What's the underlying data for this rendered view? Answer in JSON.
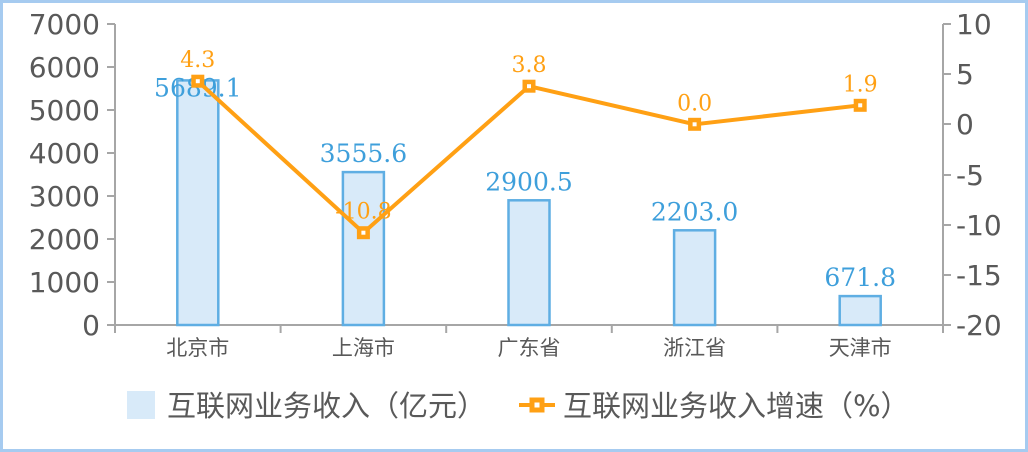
{
  "chart_data": {
    "type": "bar",
    "subtype": "bar-line-combo",
    "title": "",
    "categories": [
      "北京市",
      "上海市",
      "广东省",
      "浙江省",
      "天津市"
    ],
    "series": [
      {
        "name": "互联网业务收入（亿元）",
        "type": "bar",
        "axis": "left",
        "values": [
          5689.1,
          3555.6,
          2900.5,
          2203.0,
          671.8
        ],
        "labels": [
          "5689.1",
          "3555.6",
          "2900.5",
          "2203.0",
          "671.8"
        ]
      },
      {
        "name": "互联网业务收入增速（%）",
        "type": "line",
        "axis": "right",
        "values": [
          4.3,
          -10.8,
          3.8,
          0.0,
          1.9
        ],
        "labels": [
          "4.3",
          "-10.8",
          "3.8",
          "0.0",
          "1.9"
        ]
      }
    ],
    "left_axis": {
      "min": 0,
      "max": 7000,
      "step": 1000,
      "ticks": [
        "7000",
        "6000",
        "5000",
        "4000",
        "3000",
        "2000",
        "1000",
        "0"
      ]
    },
    "right_axis": {
      "min": -20,
      "max": 10,
      "step": 5,
      "ticks": [
        "10",
        "5",
        "0",
        "-5",
        "-10",
        "-15",
        "-20"
      ]
    },
    "grid": false,
    "legend_position": "bottom"
  },
  "colors": {
    "bar_fill": "#D8EAF9",
    "bar_border": "#5FAEE3",
    "bar_label": "#3E9FDB",
    "line": "#FFA014",
    "marker_dot": "#FFFFFF",
    "axis_text": "#595959",
    "axis_line": "#A6A6A6",
    "frame_border": "#A6CBF0"
  }
}
